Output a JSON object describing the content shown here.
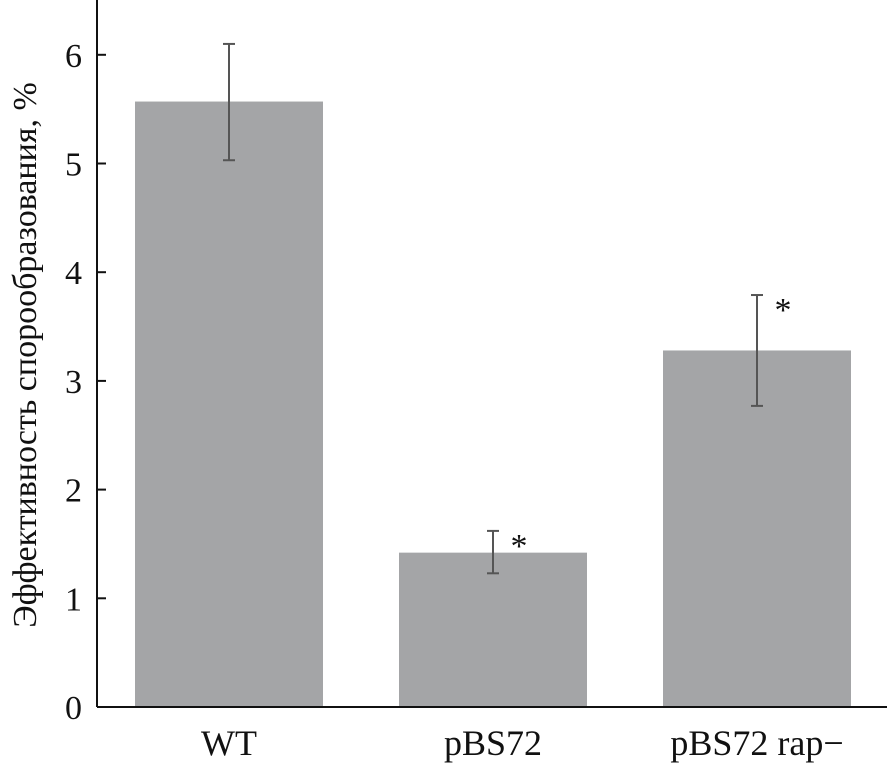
{
  "chart_data": {
    "type": "bar",
    "title": "",
    "xlabel": "",
    "ylabel": "Эффективность спорообразования, %",
    "ylim": [
      0,
      6.5
    ],
    "yticks": [
      0,
      1,
      2,
      3,
      4,
      5,
      6
    ],
    "grid": false,
    "categories": [
      "WT",
      "pBS72",
      "pBS72 rap−"
    ],
    "values": [
      5.57,
      1.42,
      3.28
    ],
    "error": [
      {
        "low": 5.03,
        "high": 6.1
      },
      {
        "low": 1.23,
        "high": 1.62
      },
      {
        "low": 2.77,
        "high": 3.79
      }
    ],
    "annotations": [
      "",
      "*",
      "*"
    ],
    "colors": {
      "bar": "#a4a5a7",
      "errorbar": "#555555",
      "axis": "#111111"
    }
  }
}
